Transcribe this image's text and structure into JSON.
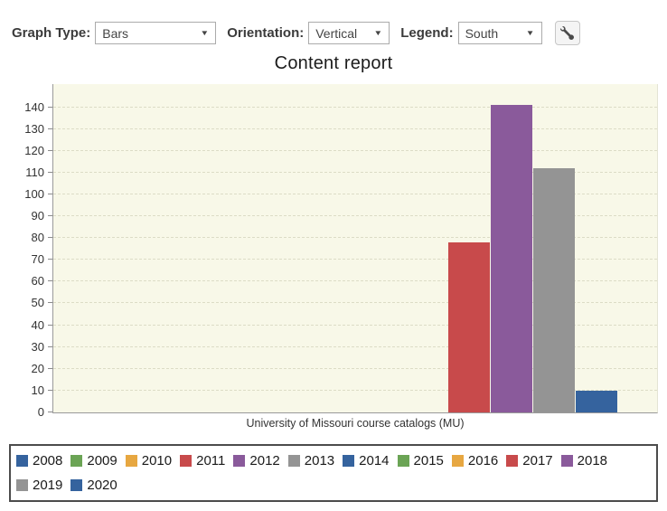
{
  "toolbar": {
    "dropdown_arrow": "▼",
    "graph_type": {
      "label": "Graph Type:",
      "value": "Bars"
    },
    "orientation": {
      "label": "Orientation:",
      "value": "Vertical"
    },
    "legend": {
      "label": "Legend:",
      "value": "South"
    }
  },
  "chart_data": {
    "type": "bar",
    "title": "Content report",
    "xlabel": "University of Missouri course catalogs (MU)",
    "categories": [
      "2008",
      "2009",
      "2010",
      "2011",
      "2012",
      "2013",
      "2014",
      "2015",
      "2016",
      "2017",
      "2018",
      "2019",
      "2020"
    ],
    "values": [
      0,
      0,
      0,
      0,
      0,
      0,
      0,
      0,
      0,
      78,
      141,
      112,
      10
    ],
    "palette": [
      "#35639E",
      "#6BA455",
      "#E7A741",
      "#C84A4B",
      "#8A5A9B",
      "#949494"
    ],
    "ylim": [
      0,
      151
    ],
    "yticks": [
      0,
      10,
      20,
      30,
      40,
      50,
      60,
      70,
      80,
      90,
      100,
      110,
      120,
      130,
      140
    ],
    "grid": true,
    "grid_style": "dashed",
    "plot_bg": "#F8F8E8",
    "legend_position": "south"
  }
}
